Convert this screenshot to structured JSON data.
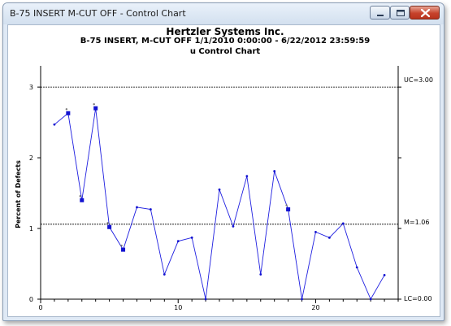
{
  "window": {
    "title": "B-75 INSERT  M-CUT OFF - Control Chart",
    "icons": [
      "minimize-icon",
      "maximize-icon",
      "close-icon"
    ]
  },
  "chart_data": {
    "type": "line",
    "title": "Hertzler Systems Inc.",
    "subtitle": "B-75 INSERT, M-CUT OFF   1/1/2010 0:00:00 - 6/22/2012 23:59:59",
    "chart_name": "u Control Chart",
    "ylabel": "Percent of Defects",
    "xlabel": "",
    "xlim": [
      0,
      26
    ],
    "ylim": [
      0,
      3.3
    ],
    "x_ticks": [
      "0",
      "10",
      "20"
    ],
    "y_ticks": [
      "0",
      "1",
      "2",
      "3"
    ],
    "control_limits": {
      "UC": "UC=3.00",
      "M": "M=1.06",
      "LC": "LC=0.00"
    },
    "limit_values": {
      "UC": 3.0,
      "M": 1.06,
      "LC": 0.0
    },
    "series": [
      {
        "x": [
          1,
          2,
          3,
          4,
          5,
          6,
          7,
          8,
          9,
          10,
          11,
          12,
          13,
          14,
          15,
          16,
          17,
          18,
          19,
          20,
          21,
          22,
          23,
          24,
          25
        ],
        "values": [
          2.47,
          2.63,
          1.4,
          2.7,
          1.02,
          0.7,
          1.3,
          1.27,
          0.35,
          0.82,
          0.87,
          0.0,
          1.55,
          1.03,
          1.74,
          0.35,
          1.81,
          1.27,
          0.0,
          0.95,
          0.87,
          1.07,
          0.45,
          0.0,
          0.34
        ]
      }
    ],
    "flagged_points": [
      2,
      3,
      4,
      5,
      6,
      18
    ],
    "colors": {
      "line": "#1f1fe0",
      "point": "#1212d0",
      "limit": "#000000",
      "background": "#ffffff"
    }
  }
}
